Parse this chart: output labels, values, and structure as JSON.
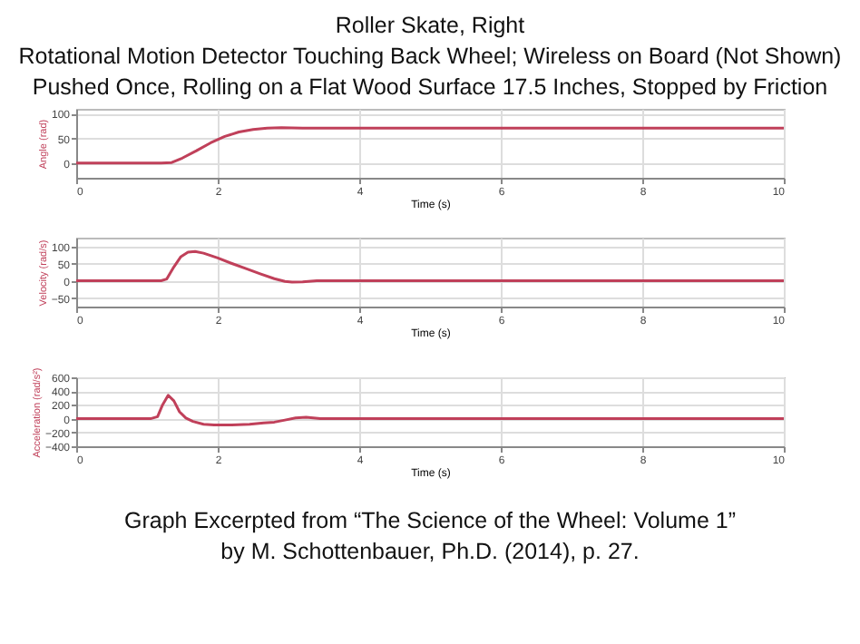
{
  "chart_data": [
    {
      "type": "line",
      "title": "Roller Skate, Right",
      "subtitle": "Rotational Motion Detector Touching Back Wheel; Wireless on Board (Not Shown)\nPushed Once, Rolling on a Flat Wood Surface 17.5 Inches, Stopped by Friction",
      "xlabel": "Time (s)",
      "ylabel": "Angle (rad)",
      "x": [
        0,
        1.2,
        1.35,
        1.5,
        1.7,
        1.9,
        2.1,
        2.3,
        2.5,
        2.7,
        2.9,
        3.2,
        4,
        6,
        8,
        10
      ],
      "series": [
        {
          "color": "#c0405a",
          "values": [
            0,
            0,
            1,
            10,
            25,
            41,
            54,
            63,
            68,
            71,
            72,
            71,
            71,
            71,
            71,
            71
          ]
        }
      ],
      "xlim": [
        0,
        10
      ],
      "xticks": [
        0,
        2,
        4,
        6,
        8,
        10
      ],
      "ylim": [
        -30,
        110
      ],
      "yticks": [
        0,
        50,
        100
      ],
      "grid": true,
      "line_style": "solid",
      "marker": "none"
    },
    {
      "type": "line",
      "xlabel": "Time (s)",
      "ylabel": "Velocity (rad/s)",
      "x": [
        0,
        1.2,
        1.28,
        1.38,
        1.48,
        1.58,
        1.68,
        1.8,
        2.0,
        2.2,
        2.4,
        2.6,
        2.8,
        2.95,
        3.05,
        3.2,
        3.4,
        4,
        6,
        8,
        10
      ],
      "series": [
        {
          "color": "#c0405a",
          "values": [
            0,
            0,
            5,
            40,
            70,
            83,
            85,
            80,
            66,
            50,
            35,
            20,
            6,
            -2,
            -4,
            -3,
            0,
            0,
            0,
            0,
            0
          ]
        }
      ],
      "xlim": [
        0,
        10
      ],
      "xticks": [
        0,
        2,
        4,
        6,
        8,
        10
      ],
      "ylim": [
        -75,
        125
      ],
      "yticks": [
        -50,
        0,
        50,
        100
      ],
      "grid": true,
      "line_style": "solid",
      "marker": "none"
    },
    {
      "type": "line",
      "xlabel": "Time (s)",
      "ylabel": "Acceleration (rad/s²)",
      "x": [
        0,
        1.05,
        1.15,
        1.22,
        1.3,
        1.38,
        1.46,
        1.55,
        1.65,
        1.8,
        1.95,
        2.2,
        2.45,
        2.65,
        2.8,
        2.95,
        3.1,
        3.25,
        3.45,
        4,
        6,
        8,
        10
      ],
      "series": [
        {
          "color": "#c0405a",
          "values": [
            0,
            0,
            30,
            200,
            340,
            260,
            100,
            10,
            -40,
            -80,
            -90,
            -90,
            -80,
            -60,
            -50,
            -20,
            10,
            20,
            0,
            0,
            0,
            0,
            0
          ]
        }
      ],
      "xlim": [
        0,
        10
      ],
      "xticks": [
        0,
        2,
        4,
        6,
        8,
        10
      ],
      "ylim": [
        -400,
        600
      ],
      "yticks": [
        -400,
        -200,
        0,
        200,
        400,
        600
      ],
      "grid": true,
      "line_style": "solid",
      "marker": "none",
      "annotations": [
        "Graph Excerpted from “The Science of the Wheel: Volume 1”",
        "by M. Schottenbauer, Ph.D. (2014), p. 27."
      ]
    }
  ]
}
